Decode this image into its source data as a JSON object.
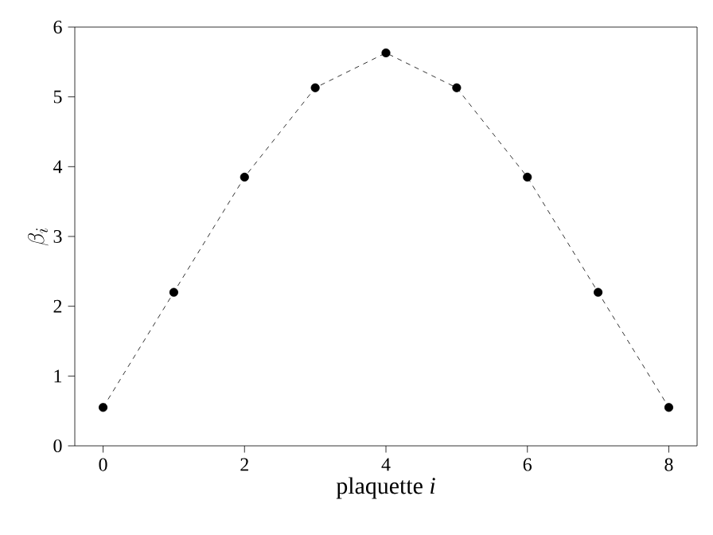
{
  "chart_data": {
    "type": "line",
    "xlabel": "plaquette *i*",
    "ylabel": "\\beta_i",
    "x": [
      0,
      1,
      2,
      3,
      4,
      5,
      6,
      7,
      8
    ],
    "series": [
      {
        "color": "#000000",
        "values": [
          0.55,
          2.2,
          3.85,
          5.13,
          5.63,
          5.13,
          3.85,
          2.2,
          0.55
        ]
      }
    ],
    "xlim": [
      -0.4,
      8.4
    ],
    "ylim": [
      0,
      6
    ],
    "xticks": [
      0,
      2,
      4,
      6,
      8
    ],
    "yticks": [
      0,
      1,
      2,
      3,
      4,
      5,
      6
    ],
    "grid": false,
    "marker": "circle",
    "line_style": "dashed"
  }
}
